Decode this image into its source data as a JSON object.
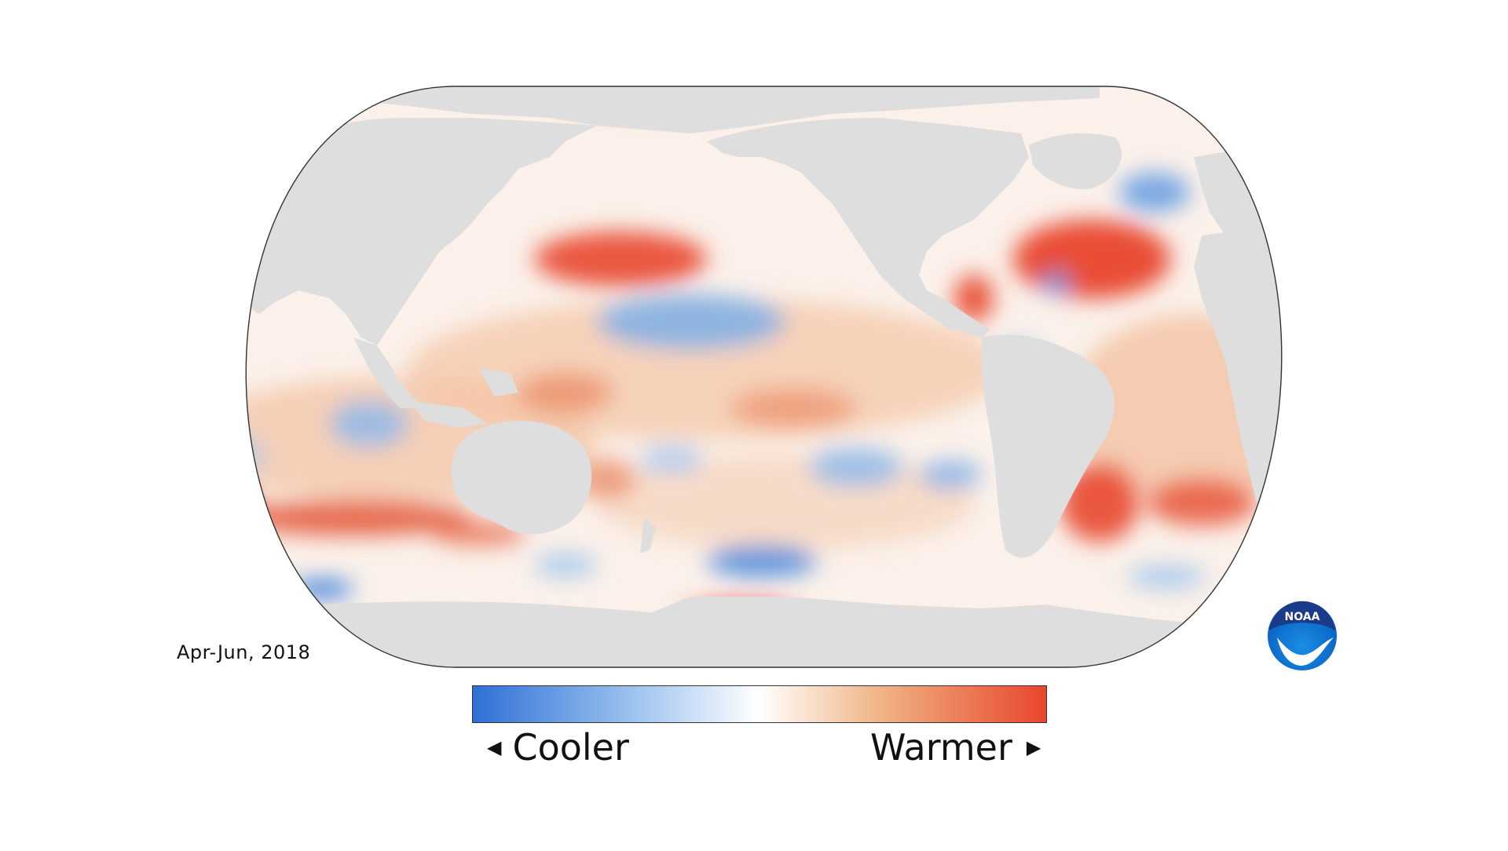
{
  "map": {
    "period": "Apr-Jun, 2018"
  },
  "legend": {
    "low_label": "Cooler",
    "high_label": "Warmer",
    "gradient_colors": [
      "#2e6fd6",
      "#9cc3ee",
      "#ffffff",
      "#f0b080",
      "#e8452c"
    ]
  },
  "logo": {
    "text": "NOAA",
    "colors": [
      "#1a3a8a",
      "#0a88d9",
      "#ffffff"
    ]
  },
  "colors": {
    "land": "#dedede",
    "ocean_neutral": "#fbf1ea",
    "warm": "#e8452c",
    "cool": "#3a7fdc"
  }
}
